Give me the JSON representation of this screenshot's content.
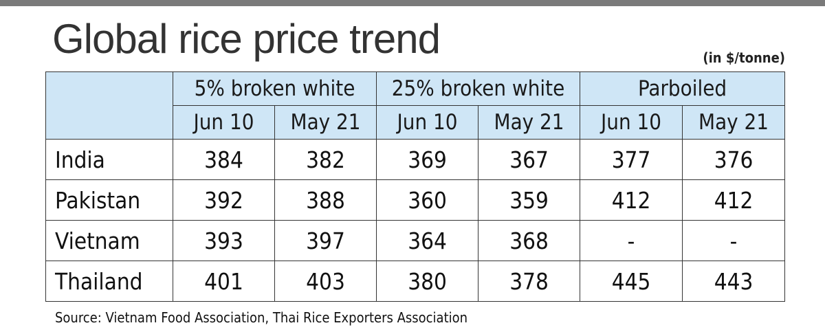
{
  "title": "Global rice price trend",
  "unit": "(in $/tonne)",
  "source": "Source: Vietnam Food Association, Thai Rice Exporters Association",
  "header_color": "#cfe6f6",
  "chart_data": {
    "type": "table",
    "title": "Global rice price trend",
    "unit": "(in $/tonne)",
    "groups": [
      "5% broken white",
      "25% broken white",
      "Parboiled"
    ],
    "subcolumns": [
      "Jun 10",
      "May 21",
      "Jun 10",
      "May 21",
      "Jun 10",
      "May 21"
    ],
    "rows": [
      {
        "country": "India",
        "values": [
          "384",
          "382",
          "369",
          "367",
          "377",
          "376"
        ]
      },
      {
        "country": "Pakistan",
        "values": [
          "392",
          "388",
          "360",
          "359",
          "412",
          "412"
        ]
      },
      {
        "country": "Vietnam",
        "values": [
          "393",
          "397",
          "364",
          "368",
          "-",
          "-"
        ]
      },
      {
        "country": "Thailand",
        "values": [
          "401",
          "403",
          "380",
          "378",
          "445",
          "443"
        ]
      }
    ]
  }
}
